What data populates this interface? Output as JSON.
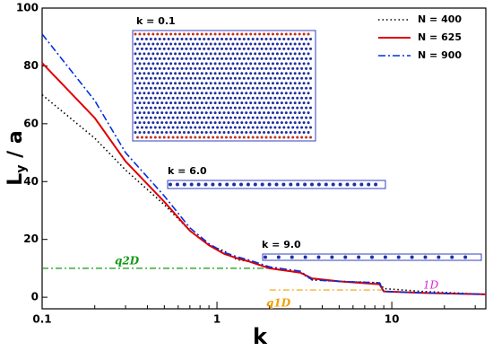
{
  "chart_data": {
    "type": "line",
    "xlabel": "k",
    "ylabel": {
      "main": "L",
      "sub": "y",
      "rest": " / a"
    },
    "log_x": true,
    "xlim": [
      0.1,
      34.5
    ],
    "xticks": [
      0.1,
      1,
      10
    ],
    "ylim": [
      -4,
      100
    ],
    "yticks": [
      0,
      20,
      40,
      60,
      80,
      100
    ],
    "legend": "upper right",
    "x": [
      0.1,
      0.2,
      0.3,
      0.5,
      0.7,
      0.9,
      1.1,
      1.3,
      1.5,
      2,
      3,
      3.5,
      5,
      8.5,
      9,
      15,
      34.5
    ],
    "series": [
      {
        "name": "N = 400",
        "color": "#000000",
        "dash": "1.5 3",
        "values": [
          70,
          55,
          44,
          32,
          23,
          18,
          16,
          13,
          12.5,
          10,
          8.5,
          6,
          5.5,
          5,
          3,
          2,
          1
        ]
      },
      {
        "name": "N = 625",
        "color": "#e00000",
        "dash": "none",
        "values": [
          81,
          62,
          47,
          33,
          23,
          18,
          15,
          13.5,
          12.5,
          10,
          8.5,
          6.5,
          5.5,
          4.5,
          2,
          1.5,
          1
        ]
      },
      {
        "name": "N = 900",
        "color": "#0030e0",
        "dash": "8 3 2 3",
        "values": [
          91,
          68,
          50,
          35,
          24,
          18.5,
          15.5,
          14,
          13,
          10.5,
          9,
          6,
          5.5,
          5,
          2,
          1.5,
          1
        ]
      }
    ],
    "reference_lines": [
      {
        "label": "q2D",
        "value": 10,
        "from": 0.1,
        "to": 2,
        "color": "#119911"
      },
      {
        "label": "q1D",
        "value": 2.5,
        "from": 2,
        "to": 9,
        "color": "#f0a000"
      }
    ],
    "annotations": [
      "1D",
      "k = 0.1",
      "k = 6.0",
      "k = 9.0"
    ]
  }
}
